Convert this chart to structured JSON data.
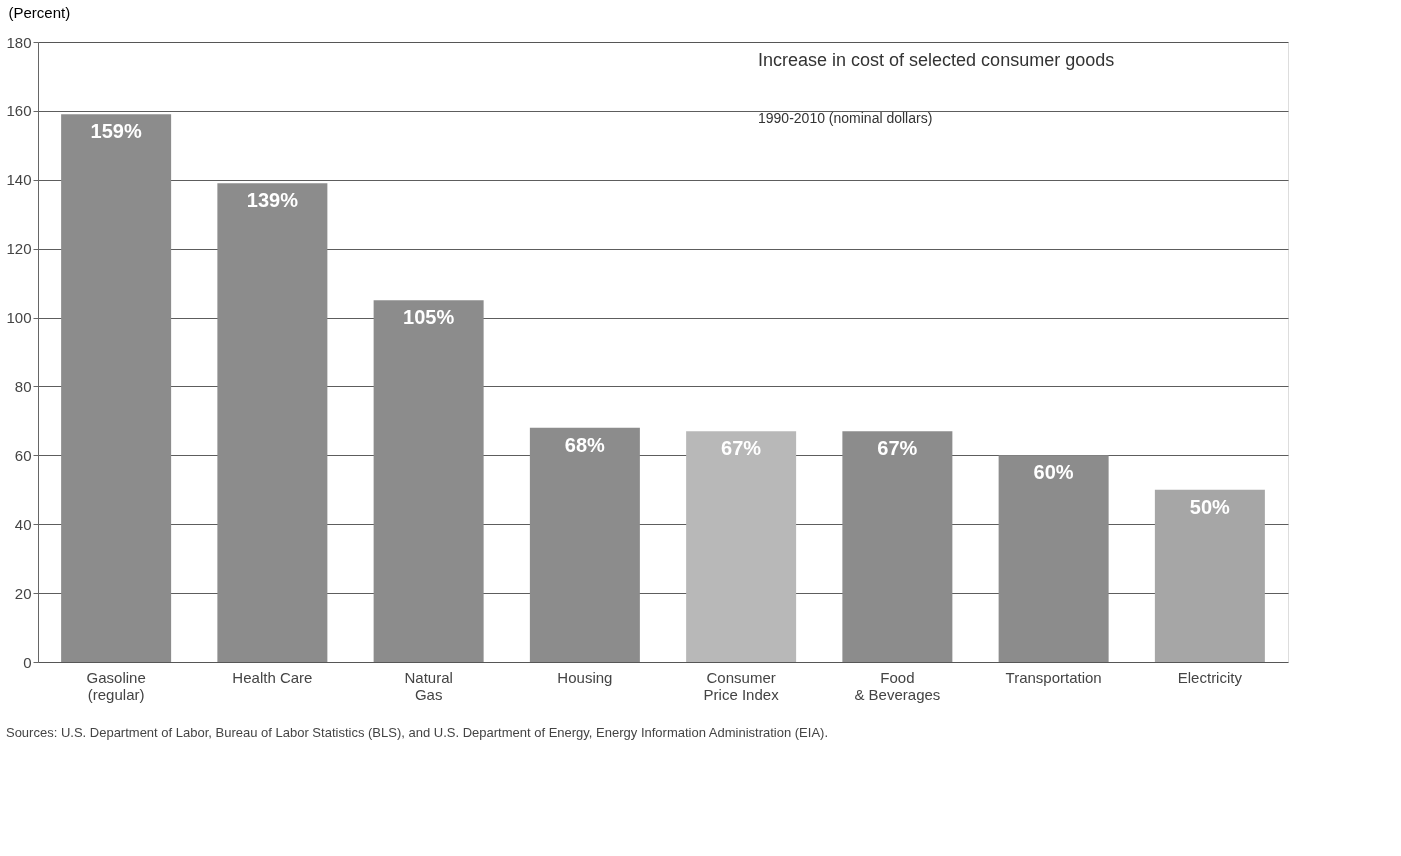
{
  "chart_data": {
    "type": "bar",
    "title": "Increase in cost of selected consumer goods",
    "subtitle": "1990-2010 (nominal dollars)",
    "ylabel": "(Percent)",
    "categories": [
      "Gasoline\n(regular)",
      "Health Care",
      "Natural\nGas",
      "Housing",
      "Consumer\nPrice Index",
      "Food\n& Beverages",
      "Transportation",
      "Electricity"
    ],
    "values": [
      159,
      139,
      105,
      68,
      67,
      67,
      60,
      50
    ],
    "colors": [
      "#8c8c8c",
      "#8c8c8c",
      "#8c8c8c",
      "#8c8c8c",
      "#b8b8b8",
      "#8c8c8c",
      "#8c8c8c",
      "#a6a6a6"
    ],
    "value_labels": [
      "159%",
      "139%",
      "105%",
      "68%",
      "67%",
      "67%",
      "60%",
      "50%"
    ],
    "ylim": [
      0,
      180
    ],
    "yticks": [
      0,
      20,
      40,
      60,
      80,
      100,
      120,
      140,
      160,
      180
    ],
    "grid": "y",
    "annotations": [
      "Sources: U.S. Department of Labor, Bureau of Labor Statistics (BLS), and U.S. Department of Energy, Energy Information Administration (EIA)."
    ]
  }
}
